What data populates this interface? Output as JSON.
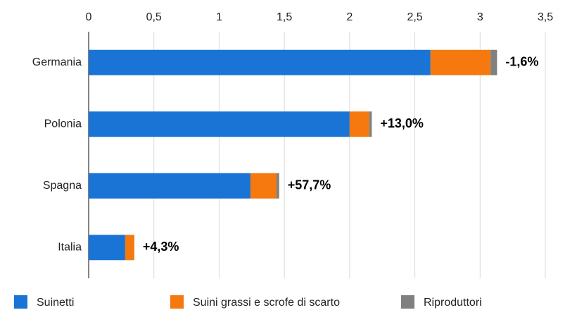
{
  "chart_data": {
    "type": "stacked-bar-horizontal",
    "categories": [
      "Germania",
      "Polonia",
      "Spagna",
      "Italia"
    ],
    "series": [
      {
        "name": "Suinetti",
        "color": "#1a74d5",
        "values": [
          2.62,
          2.0,
          1.24,
          0.28
        ]
      },
      {
        "name": "Suini grassi e scrofe di scarto",
        "color": "#f5790f",
        "values": [
          0.46,
          0.15,
          0.2,
          0.07
        ]
      },
      {
        "name": "Riproduttori",
        "color": "#808080",
        "values": [
          0.05,
          0.02,
          0.02,
          0
        ]
      }
    ],
    "annotations": [
      "-1,6%",
      "+13,0%",
      "+57,7%",
      "+4,3%"
    ],
    "xlim": [
      0,
      3.5
    ],
    "xticks": [
      0,
      {
        "value": 0.5,
        "label": "0,5"
      },
      1,
      {
        "value": 1.5,
        "label": "1,5"
      },
      2,
      {
        "value": 2.5,
        "label": "2,5"
      },
      3,
      {
        "value": 3.5,
        "label": "3,5"
      }
    ],
    "grid": true
  }
}
